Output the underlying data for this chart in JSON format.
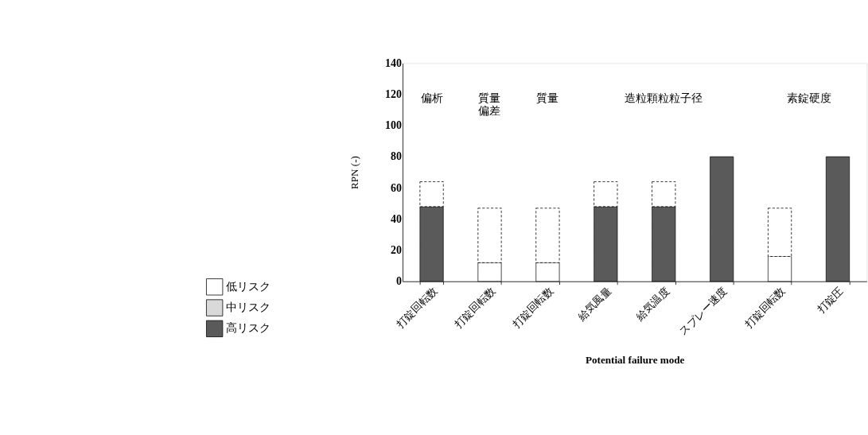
{
  "chart_data": {
    "type": "bar",
    "xlabel": "Potential failure mode",
    "ylabel": "RPN (-)",
    "categories": [
      "打錠回転数",
      "打錠回転数",
      "打錠回転数",
      "給気風量",
      "給気温度",
      "スプレー速度",
      "打錠回転数",
      "打錠圧"
    ],
    "series": [
      {
        "name": "低リスク",
        "color": "#ffffff",
        "values": [
          null,
          12,
          12,
          null,
          null,
          null,
          16,
          null
        ]
      },
      {
        "name": "中リスク",
        "color": "#d9d9d9",
        "values": [
          null,
          null,
          null,
          null,
          null,
          null,
          null,
          null
        ]
      },
      {
        "name": "高リスク",
        "color": "#5a5a5a",
        "values": [
          48,
          null,
          null,
          48,
          48,
          80,
          null,
          80
        ]
      },
      {
        "color": "#ffffff",
        "line_style": "dashed",
        "values": [
          16,
          35,
          35,
          16,
          16,
          null,
          31,
          null
        ]
      }
    ],
    "stacked": true,
    "ylim": [
      0,
      140
    ],
    "yticks": [
      0,
      20,
      40,
      60,
      80,
      100,
      120,
      140
    ],
    "annotations": [
      "偏析",
      "質量偏差",
      "質量",
      "造粒顆粒粒子径",
      "素錠硬度"
    ],
    "grid": false,
    "legend": "bottom left"
  }
}
